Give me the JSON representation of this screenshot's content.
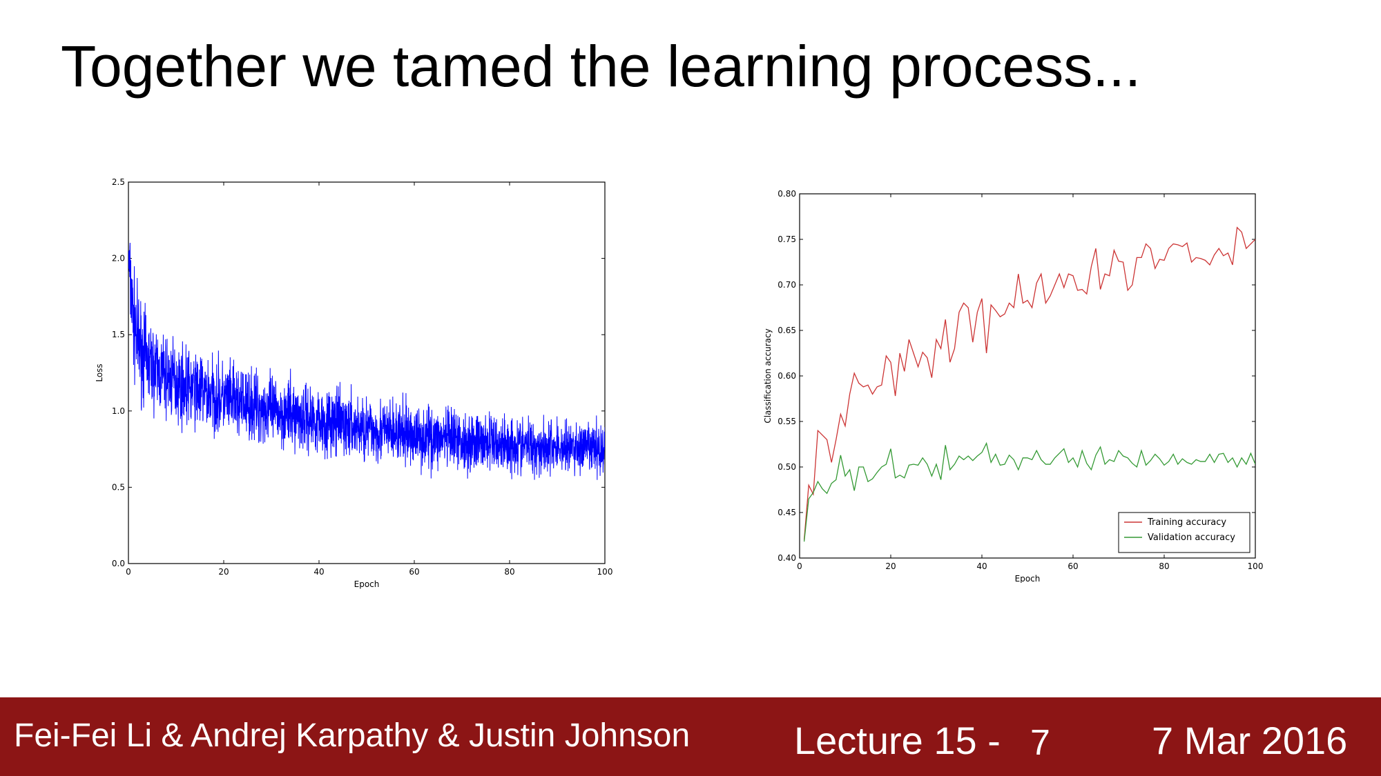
{
  "slide": {
    "title": "Together we tamed the learning process...",
    "footer": {
      "authors": "Fei-Fei Li & Andrej Karpathy & Justin Johnson",
      "lecture": "Lecture 15 -",
      "page": "7",
      "date": "7 Mar 2016"
    }
  },
  "chart_data": [
    {
      "type": "line",
      "xlabel": "Epoch",
      "ylabel": "Loss",
      "xlim": [
        0,
        100
      ],
      "ylim": [
        0,
        2.5
      ],
      "xticks": [
        "0",
        "20",
        "40",
        "60",
        "80",
        "100"
      ],
      "yticks": [
        "0.0",
        "0.5",
        "1.0",
        "1.5",
        "2.0",
        "2.5"
      ],
      "grid": false,
      "series": [
        {
          "color": "#0000ff",
          "x": [
            0,
            1,
            2,
            3,
            4,
            5,
            6,
            8,
            10,
            12,
            15,
            20,
            25,
            30,
            35,
            40,
            45,
            50,
            55,
            60,
            65,
            70,
            75,
            80,
            85,
            90,
            95,
            100
          ],
          "y": [
            2.0,
            1.6,
            1.45,
            1.38,
            1.33,
            1.29,
            1.26,
            1.22,
            1.19,
            1.16,
            1.13,
            1.08,
            1.04,
            1.0,
            0.97,
            0.94,
            0.91,
            0.88,
            0.86,
            0.84,
            0.82,
            0.8,
            0.79,
            0.78,
            0.77,
            0.76,
            0.755,
            0.75
          ],
          "noise_band": [
            0.35,
            0.5,
            0.48,
            0.45,
            0.42,
            0.4,
            0.4,
            0.38,
            0.38,
            0.36,
            0.36,
            0.35,
            0.34,
            0.33,
            0.33,
            0.32,
            0.32,
            0.31,
            0.3,
            0.3,
            0.29,
            0.28,
            0.28,
            0.27,
            0.27,
            0.26,
            0.26,
            0.25
          ]
        }
      ]
    },
    {
      "type": "line",
      "xlabel": "Epoch",
      "ylabel": "Classification accuracy",
      "xlim": [
        0,
        100
      ],
      "ylim": [
        0.4,
        0.8
      ],
      "xticks": [
        "0",
        "20",
        "40",
        "60",
        "80",
        "100"
      ],
      "yticks": [
        "0.40",
        "0.45",
        "0.50",
        "0.55",
        "0.60",
        "0.65",
        "0.70",
        "0.75",
        "0.80"
      ],
      "grid": false,
      "legend": "lower-right",
      "series": [
        {
          "name": "Training accuracy",
          "color": "#cc3333",
          "x": [
            1,
            2,
            3,
            4,
            5,
            6,
            7,
            8,
            9,
            10,
            11,
            12,
            13,
            14,
            15,
            16,
            17,
            18,
            19,
            20,
            21,
            22,
            23,
            24,
            25,
            26,
            27,
            28,
            29,
            30,
            31,
            32,
            33,
            34,
            35,
            36,
            37,
            38,
            39,
            40,
            41,
            42,
            43,
            44,
            45,
            46,
            47,
            48,
            49,
            50,
            51,
            52,
            53,
            54,
            55,
            56,
            57,
            58,
            59,
            60,
            61,
            62,
            63,
            64,
            65,
            66,
            67,
            68,
            69,
            70,
            71,
            72,
            73,
            74,
            75,
            76,
            77,
            78,
            79,
            80,
            81,
            82,
            83,
            84,
            85,
            86,
            87,
            88,
            89,
            90,
            91,
            92,
            93,
            94,
            95,
            96,
            97,
            98,
            99,
            100
          ],
          "y": [
            0.42,
            0.48,
            0.47,
            0.54,
            0.535,
            0.53,
            0.505,
            0.53,
            0.558,
            0.545,
            0.58,
            0.603,
            0.592,
            0.588,
            0.59,
            0.58,
            0.588,
            0.59,
            0.622,
            0.615,
            0.578,
            0.625,
            0.605,
            0.64,
            0.625,
            0.61,
            0.626,
            0.62,
            0.598,
            0.64,
            0.63,
            0.662,
            0.615,
            0.63,
            0.67,
            0.68,
            0.675,
            0.637,
            0.67,
            0.685,
            0.625,
            0.678,
            0.672,
            0.665,
            0.668,
            0.68,
            0.675,
            0.712,
            0.68,
            0.683,
            0.675,
            0.702,
            0.712,
            0.68,
            0.688,
            0.7,
            0.712,
            0.697,
            0.712,
            0.71,
            0.694,
            0.695,
            0.69,
            0.72,
            0.74,
            0.695,
            0.712,
            0.71,
            0.738,
            0.726,
            0.725,
            0.694,
            0.7,
            0.73,
            0.73,
            0.745,
            0.74,
            0.718,
            0.728,
            0.727,
            0.74,
            0.745,
            0.744,
            0.742,
            0.746,
            0.725,
            0.73,
            0.729,
            0.727,
            0.722,
            0.733,
            0.74,
            0.732,
            0.735,
            0.722,
            0.763,
            0.758,
            0.74,
            0.745,
            0.75
          ]
        },
        {
          "name": "Validation accuracy",
          "color": "#339933",
          "x": [
            1,
            2,
            3,
            4,
            5,
            6,
            7,
            8,
            9,
            10,
            11,
            12,
            13,
            14,
            15,
            16,
            17,
            18,
            19,
            20,
            21,
            22,
            23,
            24,
            25,
            26,
            27,
            28,
            29,
            30,
            31,
            32,
            33,
            34,
            35,
            36,
            37,
            38,
            39,
            40,
            41,
            42,
            43,
            44,
            45,
            46,
            47,
            48,
            49,
            50,
            51,
            52,
            53,
            54,
            55,
            56,
            57,
            58,
            59,
            60,
            61,
            62,
            63,
            64,
            65,
            66,
            67,
            68,
            69,
            70,
            71,
            72,
            73,
            74,
            75,
            76,
            77,
            78,
            79,
            80,
            81,
            82,
            83,
            84,
            85,
            86,
            87,
            88,
            89,
            90,
            91,
            92,
            93,
            94,
            95,
            96,
            97,
            98,
            99,
            100
          ],
          "y": [
            0.418,
            0.465,
            0.472,
            0.484,
            0.476,
            0.471,
            0.482,
            0.486,
            0.513,
            0.49,
            0.497,
            0.474,
            0.5,
            0.5,
            0.484,
            0.487,
            0.494,
            0.5,
            0.503,
            0.52,
            0.488,
            0.491,
            0.488,
            0.502,
            0.503,
            0.502,
            0.51,
            0.503,
            0.49,
            0.503,
            0.486,
            0.524,
            0.497,
            0.503,
            0.512,
            0.508,
            0.512,
            0.507,
            0.512,
            0.516,
            0.526,
            0.505,
            0.514,
            0.502,
            0.503,
            0.513,
            0.508,
            0.497,
            0.51,
            0.51,
            0.508,
            0.518,
            0.508,
            0.503,
            0.503,
            0.51,
            0.515,
            0.52,
            0.505,
            0.51,
            0.5,
            0.518,
            0.504,
            0.497,
            0.513,
            0.522,
            0.503,
            0.508,
            0.506,
            0.518,
            0.512,
            0.51,
            0.504,
            0.5,
            0.518,
            0.502,
            0.507,
            0.514,
            0.509,
            0.502,
            0.506,
            0.514,
            0.503,
            0.509,
            0.505,
            0.503,
            0.508,
            0.506,
            0.506,
            0.514,
            0.505,
            0.514,
            0.515,
            0.505,
            0.51,
            0.5,
            0.51,
            0.503,
            0.515,
            0.503
          ]
        }
      ]
    }
  ]
}
